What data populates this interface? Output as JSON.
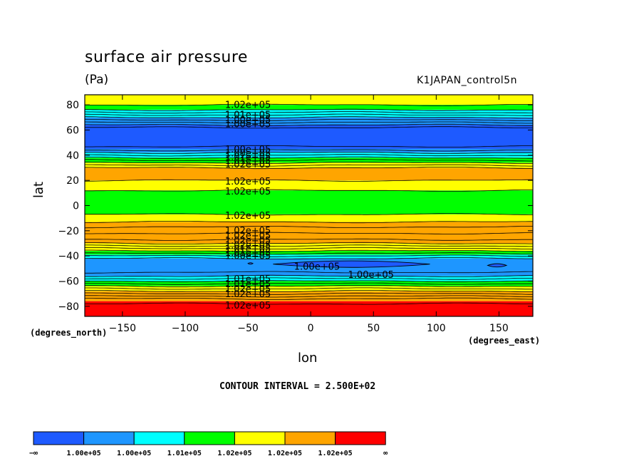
{
  "header": {
    "title": "surface air pressure",
    "units": "(Pa)",
    "run_name": "K1JAPAN_control5n"
  },
  "footer": {
    "contour_interval": "CONTOUR INTERVAL = 2.500E+02"
  },
  "chart_data": {
    "type": "heatmap",
    "title": "surface air pressure",
    "subtitle": "(Pa)",
    "xlabel": "lon",
    "ylabel": "lat",
    "x_units": "(degrees_east)",
    "y_units": "(degrees_north)",
    "xlim": [
      -180,
      177
    ],
    "ylim": [
      -88,
      88
    ],
    "x_ticks": [
      -150,
      -100,
      -50,
      0,
      50,
      100,
      150
    ],
    "y_ticks": [
      -80,
      -60,
      -40,
      -20,
      0,
      20,
      40,
      60,
      80
    ],
    "x_tick_labels": [
      "−150",
      "−100",
      "−50",
      "0",
      "50",
      "100",
      "150"
    ],
    "y_tick_labels": [
      "−80",
      "−60",
      "−40",
      "−20",
      "0",
      "20",
      "40",
      "60",
      "80"
    ],
    "colors": [
      "#1e5aff",
      "#1e96ff",
      "#00ffff",
      "#00ff00",
      "#ffff00",
      "#ffa500",
      "#ff0000"
    ],
    "colorbar_labels": [
      "−∞",
      "1.00e+05",
      "1.00e+05",
      "1.01e+05",
      "1.02e+05",
      "1.02e+05",
      "1.02e+05",
      "∞"
    ],
    "bands": [
      {
        "lat0": 80,
        "lat1": 88,
        "level": 4
      },
      {
        "lat0": 76,
        "lat1": 80,
        "level": 3
      },
      {
        "lat0": 70,
        "lat1": 76,
        "level": 2
      },
      {
        "lat0": 64,
        "lat1": 70,
        "level": 1
      },
      {
        "lat0": 45,
        "lat1": 64,
        "level": 0
      },
      {
        "lat0": 42,
        "lat1": 45,
        "level": 1
      },
      {
        "lat0": 38,
        "lat1": 42,
        "level": 2
      },
      {
        "lat0": 34,
        "lat1": 38,
        "level": 3
      },
      {
        "lat0": 30,
        "lat1": 34,
        "level": 4
      },
      {
        "lat0": 20,
        "lat1": 30,
        "level": 5
      },
      {
        "lat0": 12,
        "lat1": 20,
        "level": 4
      },
      {
        "lat0": -7,
        "lat1": 12,
        "level": 3
      },
      {
        "lat0": -13,
        "lat1": -7,
        "level": 4
      },
      {
        "lat0": -30,
        "lat1": -13,
        "level": 5
      },
      {
        "lat0": -36,
        "lat1": -30,
        "level": 4
      },
      {
        "lat0": -39,
        "lat1": -36,
        "level": 3
      },
      {
        "lat0": -42,
        "lat1": -39,
        "level": 2
      },
      {
        "lat0": -56,
        "lat1": -42,
        "level": 1
      },
      {
        "lat0": -60,
        "lat1": -56,
        "level": 2
      },
      {
        "lat0": -64,
        "lat1": -60,
        "level": 3
      },
      {
        "lat0": -68,
        "lat1": -64,
        "level": 4
      },
      {
        "lat0": -76,
        "lat1": -68,
        "level": 5
      },
      {
        "lat0": -88,
        "lat1": -76,
        "level": 6
      }
    ],
    "contours": [
      -78,
      -74,
      -72,
      -70,
      -68,
      -66,
      -64,
      -62,
      -60,
      -58,
      -56,
      -53,
      -42,
      -40,
      -38,
      -36,
      -34,
      -32,
      -30,
      -27,
      -22,
      -17,
      -13,
      -7,
      12,
      20,
      30,
      32,
      34,
      36,
      38,
      40,
      42,
      44,
      47,
      62,
      64,
      66,
      68,
      70,
      72,
      74,
      76,
      80
    ],
    "lows": [
      {
        "lon0": -30,
        "lon1": 95,
        "lat": -46.5,
        "halfh": 2.6
      },
      {
        "lon0": 141,
        "lon1": 156,
        "lat": -47.5,
        "halfh": 1.3
      },
      {
        "lon0": -50,
        "lon1": -46,
        "lat": -46,
        "halfh": 0.6
      }
    ],
    "contour_labels": [
      {
        "lon": -50,
        "lat": 80.5,
        "text": "1.02e+05"
      },
      {
        "lon": -50,
        "lat": 72.5,
        "text": "1.01e+05"
      },
      {
        "lon": -50,
        "lat": 68.5,
        "text": "1.00e+05"
      },
      {
        "lon": -50,
        "lat": 65.0,
        "text": "1.00e+05"
      },
      {
        "lon": -50,
        "lat": 45.0,
        "text": "1.00e+05"
      },
      {
        "lon": -50,
        "lat": 42.0,
        "text": "1.00e+05"
      },
      {
        "lon": -50,
        "lat": 39.0,
        "text": "1.01e+05"
      },
      {
        "lon": -50,
        "lat": 36.0,
        "text": "1.01e+05"
      },
      {
        "lon": -50,
        "lat": 33.0,
        "text": "1.02e+05"
      },
      {
        "lon": -50,
        "lat": 19.5,
        "text": "1.02e+05"
      },
      {
        "lon": -50,
        "lat": 11.5,
        "text": "1.02e+05"
      },
      {
        "lon": -50,
        "lat": -7.5,
        "text": "1.02e+05"
      },
      {
        "lon": -50,
        "lat": -19.5,
        "text": "1.02e+05"
      },
      {
        "lon": -50,
        "lat": -23.5,
        "text": "1.02e+05"
      },
      {
        "lon": -50,
        "lat": -27.5,
        "text": "1.02e+05"
      },
      {
        "lon": -50,
        "lat": -31.0,
        "text": "1.02e+05"
      },
      {
        "lon": -50,
        "lat": -34.0,
        "text": "1.01e+05"
      },
      {
        "lon": -50,
        "lat": -37.0,
        "text": "1.01e+05"
      },
      {
        "lon": -50,
        "lat": -39.5,
        "text": "1.00e+05"
      },
      {
        "lon": 5,
        "lat": -48.0,
        "text": "1.00e+05"
      },
      {
        "lon": 48,
        "lat": -54.5,
        "text": "1.00e+05"
      },
      {
        "lon": -50,
        "lat": -58.0,
        "text": "1.01e+05"
      },
      {
        "lon": -50,
        "lat": -62.0,
        "text": "1.01e+05"
      },
      {
        "lon": -50,
        "lat": -66.0,
        "text": "1.02e+05"
      },
      {
        "lon": -50,
        "lat": -70.0,
        "text": "1.02e+05"
      },
      {
        "lon": -50,
        "lat": -79.0,
        "text": "1.02e+05"
      }
    ]
  }
}
